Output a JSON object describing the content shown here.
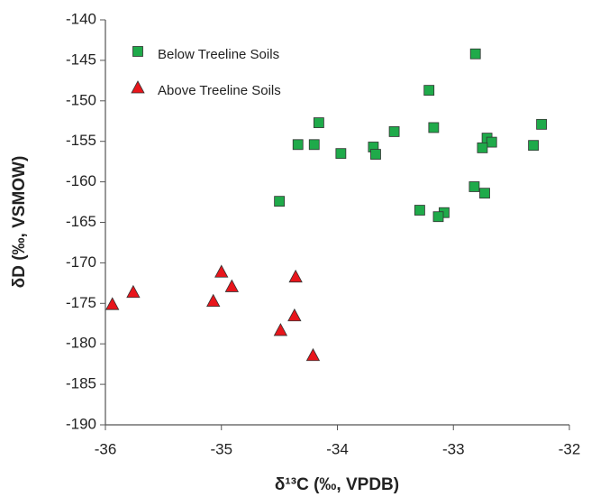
{
  "chart_data": {
    "type": "scatter",
    "x_label": "δ¹³C (‰, VPDB)",
    "y_label": "δD (‰, VSMOW)",
    "xlim": [
      -36,
      -32
    ],
    "xticks": [
      -36,
      -35,
      -34,
      -33,
      -32
    ],
    "ylim": [
      -190,
      -140
    ],
    "yticks": [
      -190,
      -185,
      -180,
      -175,
      -170,
      -165,
      -160,
      -155,
      -150,
      -145,
      -140
    ],
    "grid": false,
    "legend": "upper left",
    "series": [
      {
        "name": "Below Treeline Soils",
        "color": "#1faa4a",
        "marker": "square",
        "x": [
          -32.81,
          -33.21,
          -34.16,
          -32.24,
          -33.17,
          -33.51,
          -32.71,
          -32.67,
          -34.34,
          -34.2,
          -32.31,
          -33.69,
          -32.75,
          -33.67,
          -33.97,
          -32.82,
          -32.73,
          -34.5,
          -33.29,
          -33.08,
          -33.13
        ],
        "values": [
          -144.2,
          -148.7,
          -152.7,
          -152.9,
          -153.3,
          -153.8,
          -154.6,
          -155.1,
          -155.4,
          -155.4,
          -155.5,
          -155.7,
          -155.8,
          -156.6,
          -156.5,
          -160.6,
          -161.4,
          -162.4,
          -163.5,
          -163.8,
          -164.3
        ]
      },
      {
        "name": "Above Treeline Soils",
        "color": "#e8151b",
        "marker": "triangle",
        "x": [
          -35.94,
          -35.76,
          -35.07,
          -35.0,
          -34.91,
          -34.36,
          -34.37,
          -34.49,
          -34.21
        ],
        "values": [
          -175.1,
          -173.6,
          -174.7,
          -171.1,
          -172.9,
          -171.7,
          -176.5,
          -178.3,
          -181.4
        ]
      }
    ]
  }
}
